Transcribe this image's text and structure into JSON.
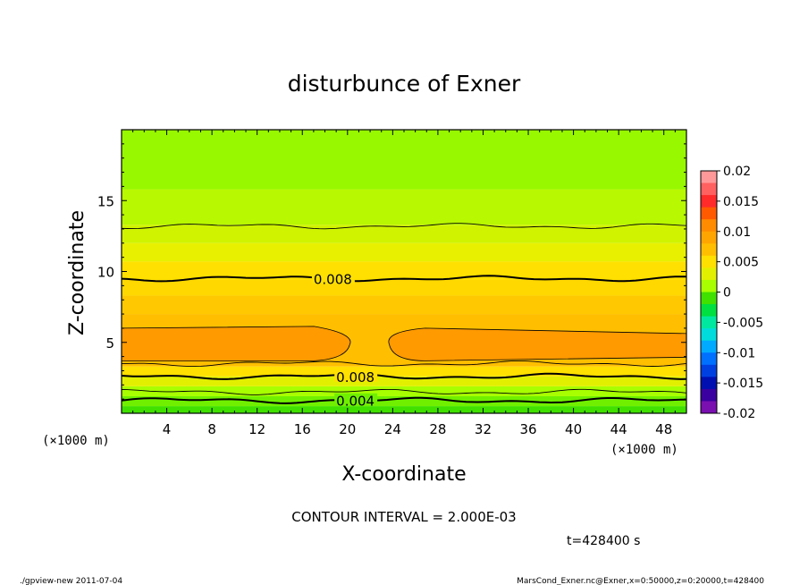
{
  "chart_data": {
    "type": "contour",
    "title": "disturbunce of Exner",
    "xlabel": "X-coordinate",
    "ylabel": "Z-coordinate",
    "x_unit": "(×1000 m)",
    "y_unit": "(×1000 m)",
    "xlim": [
      0,
      50
    ],
    "ylim": [
      0,
      20
    ],
    "x_ticks": [
      4,
      8,
      12,
      16,
      20,
      24,
      28,
      32,
      36,
      40,
      44,
      48
    ],
    "y_ticks": [
      5,
      10,
      15
    ],
    "colorbar": {
      "levels": [
        -0.02,
        -0.015,
        -0.01,
        -0.005,
        0,
        0.005,
        0.01,
        0.015,
        0.02
      ],
      "labels": [
        "0.02",
        "0.015",
        "0.01",
        "0.005",
        "0",
        "-0.005",
        "-0.01",
        "-0.015",
        "-0.02"
      ],
      "colors": [
        "#ff9999",
        "#ff6060",
        "#ff2a2a",
        "#ff5a00",
        "#ff8c00",
        "#ffa500",
        "#ffbf00",
        "#ffe000",
        "#e2f000",
        "#a8ff00",
        "#40e000",
        "#00e040",
        "#00e8a0",
        "#00dcdc",
        "#00aaff",
        "#0070ff",
        "#0040e0",
        "#0010b0",
        "#3a00a0",
        "#7a10b0"
      ]
    },
    "bands": [
      {
        "z": [
          0,
          0.5
        ],
        "color": "#40e000"
      },
      {
        "z": [
          0.5,
          1.2
        ],
        "color": "#70f000"
      },
      {
        "z": [
          1.2,
          1.9
        ],
        "color": "#a8ff00"
      },
      {
        "z": [
          1.9,
          2.6
        ],
        "color": "#e2f000"
      },
      {
        "z": [
          2.6,
          3.3
        ],
        "color": "#ffe000"
      },
      {
        "z": [
          3.3,
          7.0
        ],
        "color": "#ffbf00"
      },
      {
        "z": [
          7.0,
          8.3
        ],
        "color": "#ffc800"
      },
      {
        "z": [
          8.3,
          9.4
        ],
        "color": "#ffd800"
      },
      {
        "z": [
          9.4,
          10.7
        ],
        "color": "#ffe000"
      },
      {
        "z": [
          10.7,
          12.0
        ],
        "color": "#e8f000"
      },
      {
        "z": [
          12.0,
          13.3
        ],
        "color": "#d0f400"
      },
      {
        "z": [
          13.3,
          15.8
        ],
        "color": "#b8f800"
      },
      {
        "z": [
          15.8,
          20
        ],
        "color": "#98f800"
      }
    ],
    "blobs": [
      {
        "x": [
          0,
          20.2
        ],
        "z": [
          3.7,
          6.0
        ],
        "color": "#ff9a00"
      },
      {
        "x": [
          23.7,
          50
        ],
        "z": [
          3.7,
          6.0
        ],
        "color": "#ff9a00"
      }
    ],
    "contours": [
      {
        "z": 0.9,
        "value": 0.004,
        "label": "0.004",
        "label_x": 19,
        "bold": true
      },
      {
        "z": 1.5,
        "value": 0.006,
        "bold": false
      },
      {
        "z": 2.6,
        "value": 0.008,
        "label": "0.008",
        "label_x": 19,
        "bold": true
      },
      {
        "z": 3.5,
        "value": 0.01,
        "bold": false
      },
      {
        "z": 9.5,
        "value": 0.008,
        "label": "0.008",
        "label_x": 17,
        "bold": true
      },
      {
        "z": 13.2,
        "value": 0.006,
        "bold": false
      }
    ],
    "contour_interval": "CONTOUR INTERVAL = 2.000E-03",
    "time": "t=428400 s"
  },
  "footer": {
    "left": "./gpview-new  2011-07-04",
    "right": "MarsCond_Exner.nc@Exner,x=0:50000,z=0:20000,t=428400"
  }
}
